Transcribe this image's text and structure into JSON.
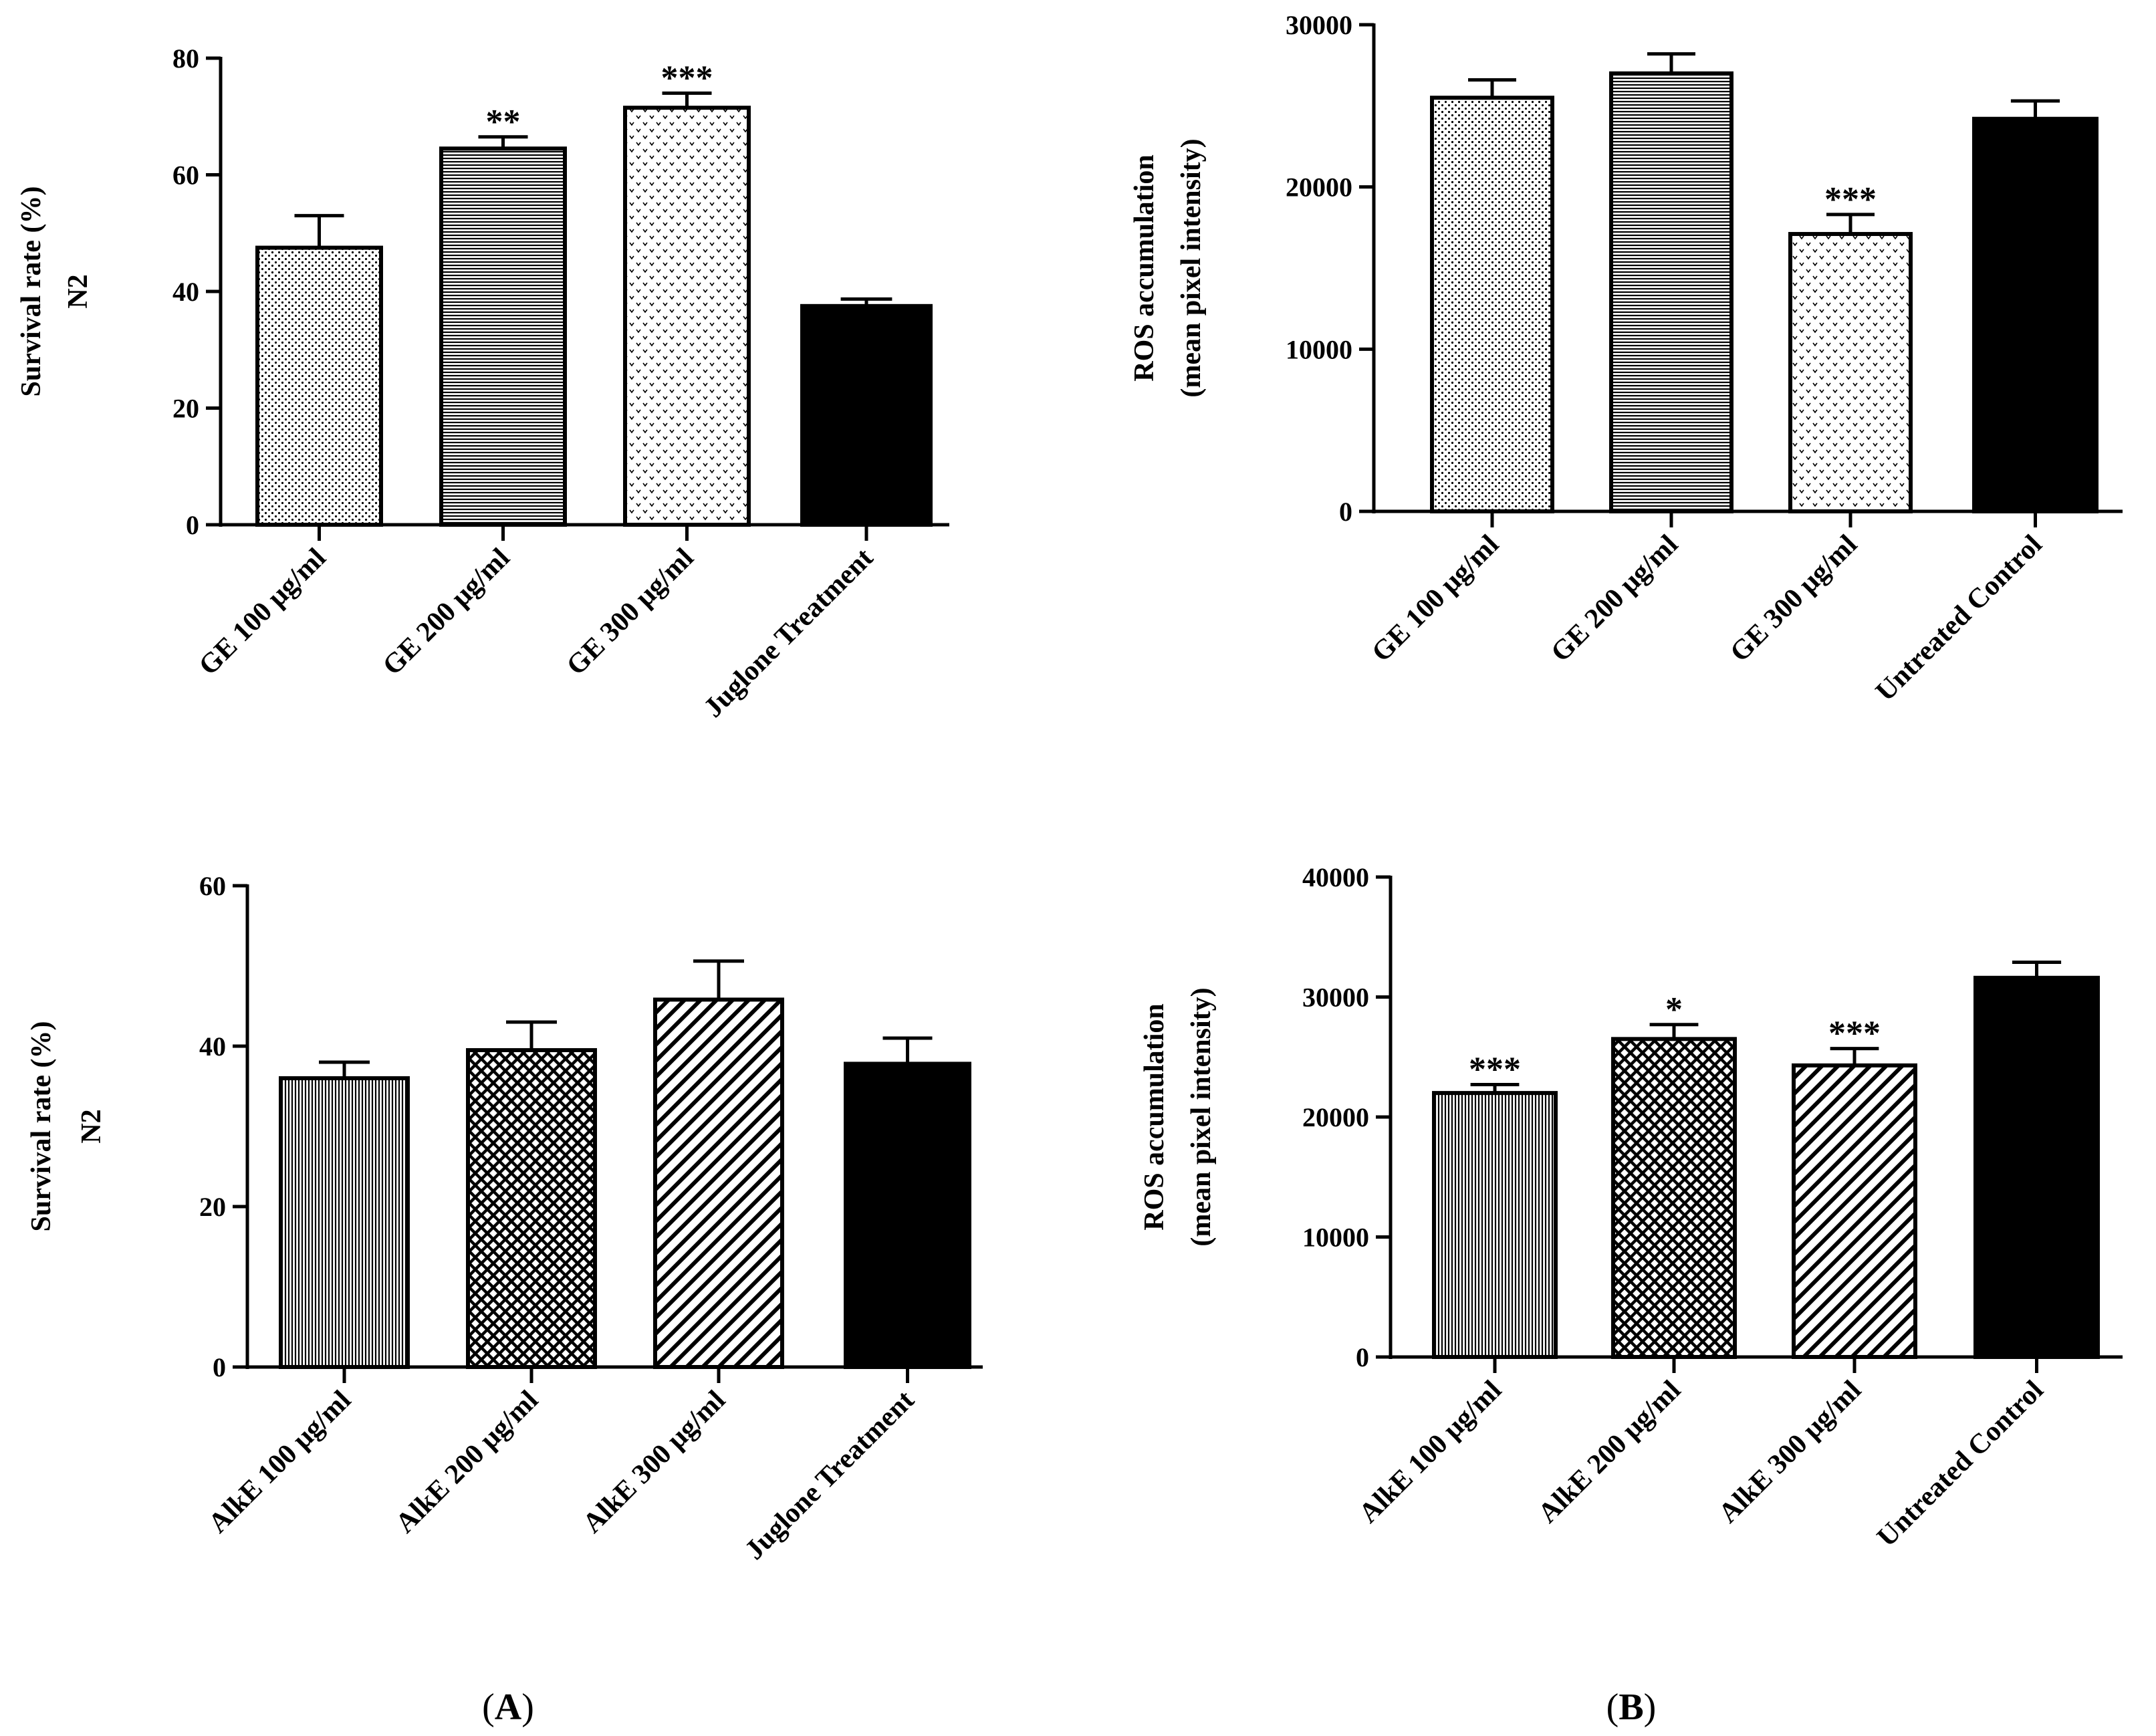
{
  "panel_labels": {
    "A": "A",
    "B": "B"
  },
  "chart_data": [
    {
      "type": "bar",
      "ylabel_lines": [
        "Survival rate (%)",
        "N2"
      ],
      "ylim": [
        0,
        80
      ],
      "yticks": [
        0,
        20,
        40,
        60,
        80
      ],
      "categories": [
        "GE 100 μg/ml",
        "GE 200 μg/ml",
        "GE 300 μg/ml",
        "Juglone Treatment"
      ],
      "values": [
        47.5,
        64.5,
        71.5,
        37.5
      ],
      "errors": [
        5.5,
        2.0,
        2.5,
        1.2
      ],
      "significance": [
        "",
        "**",
        "***",
        ""
      ],
      "patterns": [
        "dots",
        "hlines",
        "vees",
        "solid"
      ]
    },
    {
      "type": "bar",
      "ylabel_lines": [
        "ROS accumulation",
        "(mean pixel intensity)"
      ],
      "ylim": [
        0,
        30000
      ],
      "yticks": [
        0,
        10000,
        20000,
        30000
      ],
      "categories": [
        "GE 100 μg/ml",
        "GE 200 μg/ml",
        "GE 300 μg/ml",
        "Untreated Control"
      ],
      "values": [
        25500,
        27000,
        17100,
        24200
      ],
      "errors": [
        1100,
        1200,
        1200,
        1100
      ],
      "significance": [
        "",
        "",
        "***",
        ""
      ],
      "patterns": [
        "dots",
        "hlines",
        "vees",
        "solid"
      ]
    },
    {
      "type": "bar",
      "ylabel_lines": [
        "Survival rate (%)",
        "N2"
      ],
      "ylim": [
        0,
        60
      ],
      "yticks": [
        0,
        20,
        40,
        60
      ],
      "categories": [
        "AlkE 100 μg/ml",
        "AlkE 200 μg/ml",
        "AlkE 300 μg/ml",
        "Juglone Treatment"
      ],
      "values": [
        36,
        39.5,
        45.8,
        37.8
      ],
      "errors": [
        2.0,
        3.5,
        4.8,
        3.2
      ],
      "significance": [
        "",
        "",
        "",
        ""
      ],
      "patterns": [
        "vlines",
        "cross",
        "diag",
        "solid"
      ]
    },
    {
      "type": "bar",
      "ylabel_lines": [
        "ROS accumulation",
        "(mean pixel intensity)"
      ],
      "ylim": [
        0,
        40000
      ],
      "yticks": [
        0,
        10000,
        20000,
        30000,
        40000
      ],
      "categories": [
        "AlkE 100 μg/ml",
        "AlkE 200 μg/ml",
        "AlkE 300 μg/ml",
        "Untreated Control"
      ],
      "values": [
        22000,
        26500,
        24300,
        31600
      ],
      "errors": [
        700,
        1200,
        1400,
        1300
      ],
      "significance": [
        "***",
        "*",
        "***",
        ""
      ],
      "patterns": [
        "vlines",
        "cross",
        "diag",
        "solid"
      ]
    }
  ]
}
